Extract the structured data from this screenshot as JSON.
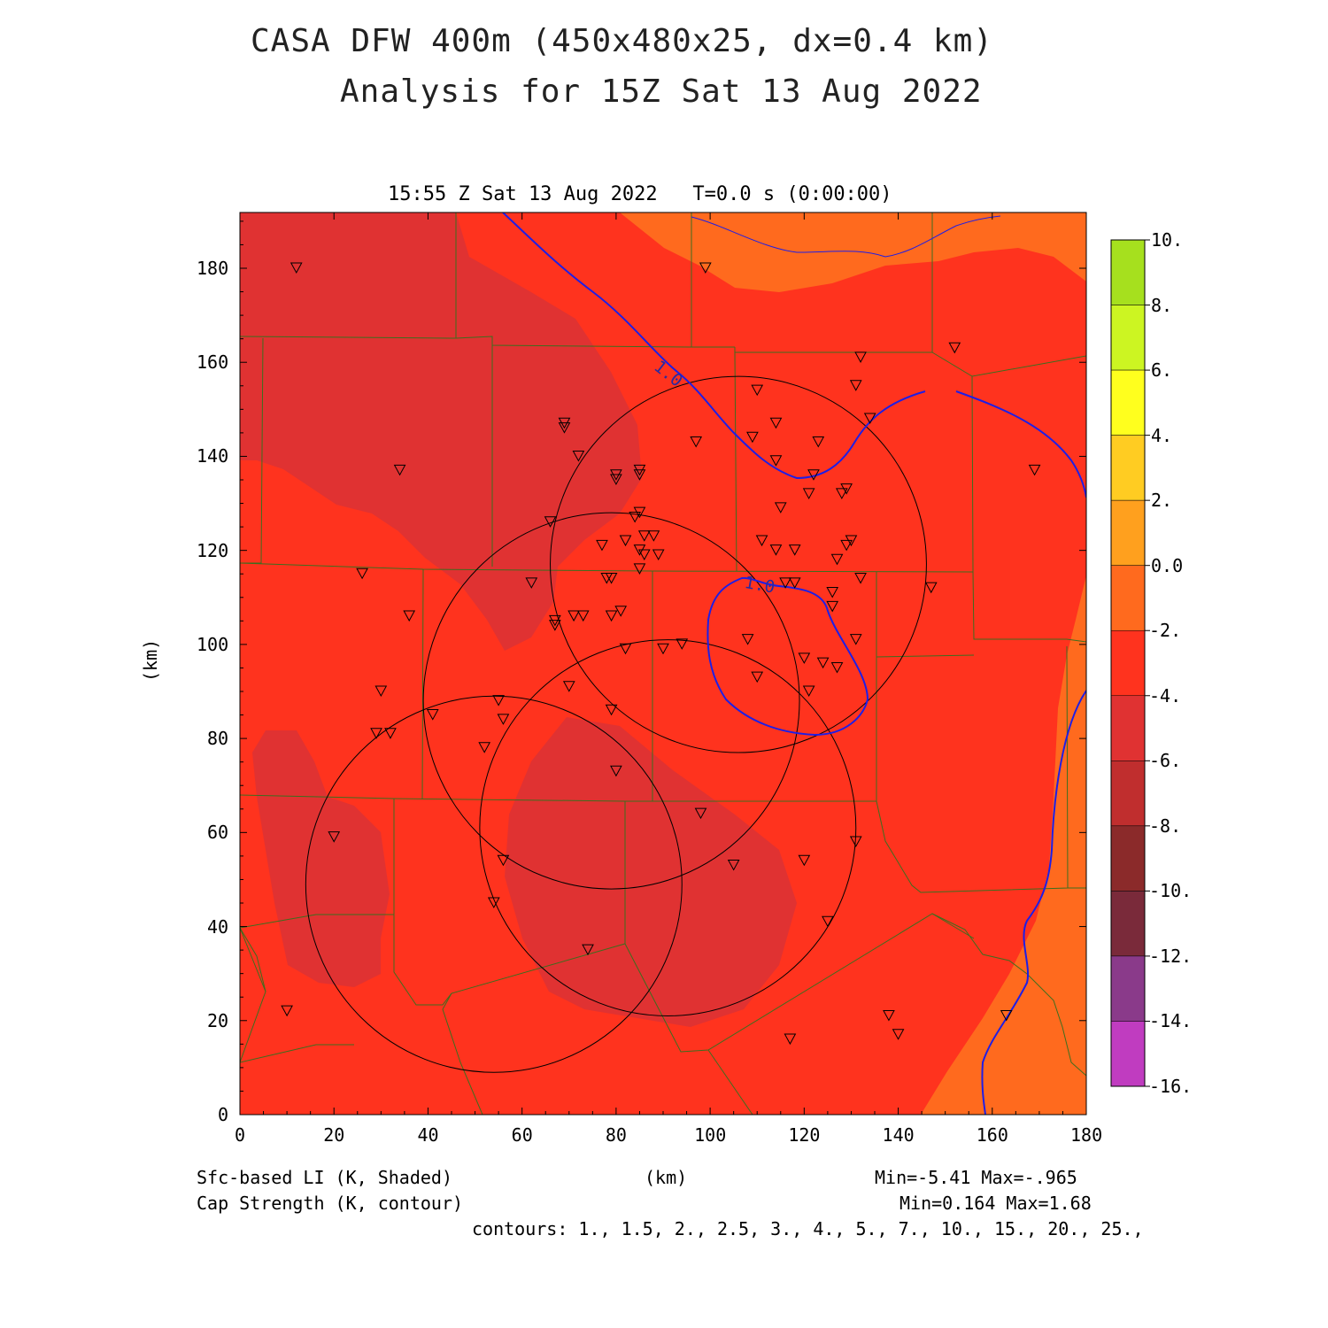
{
  "title": {
    "line1": "CASA DFW 400m (450x480x25, dx=0.4 km)",
    "line2": "Analysis for 15Z Sat 13 Aug 2022"
  },
  "time_label": "15:55 Z Sat 13 Aug 2022   T=0.0 s (0:00:00)",
  "axes": {
    "x_label": "(km)",
    "y_label": "(km)",
    "x_ticks": [
      "0",
      "20",
      "40",
      "60",
      "80",
      "100",
      "120",
      "140",
      "160",
      "180"
    ],
    "y_ticks": [
      "0",
      "20",
      "40",
      "60",
      "80",
      "100",
      "120",
      "140",
      "160",
      "180"
    ]
  },
  "colorbar": {
    "labels": [
      "10.",
      "8.",
      "6.",
      "4.",
      "2.",
      "0.0",
      "-2.",
      "-4.",
      "-6.",
      "-8.",
      "-10.",
      "-12.",
      "-14.",
      "-16."
    ],
    "colors": [
      "#a6e01e",
      "#ccf522",
      "#ffff1e",
      "#ffcc22",
      "#ffa01e",
      "#ff6a1e",
      "#ff331e",
      "#e03232",
      "#c02e2e",
      "#8b2a2a",
      "#7a2a3a",
      "#8a3a8a",
      "#c03cc0",
      "#dd44dd"
    ]
  },
  "footer": {
    "left1": "Sfc-based LI (K, Shaded)",
    "left2": "Cap Strength (K, contour)",
    "center": "(km)",
    "right1": "Min=-5.41 Max=-.965",
    "right2": "Min=0.164 Max=1.68",
    "contours": "contours: 1., 1.5, 2., 2.5, 3., 4., 5., 7., 10., 15., 20., 25.,"
  },
  "contour_labels": [
    "1.0",
    "1.0"
  ],
  "colors": {
    "field_main": "#ff331e",
    "field_low": "#e03232",
    "field_high": "#ff6a1e",
    "contour": "#1e1ee6",
    "county": "#3c6e1e"
  },
  "stations": [
    [
      12,
      180
    ],
    [
      34,
      137
    ],
    [
      26,
      115
    ],
    [
      36,
      106
    ],
    [
      30,
      90
    ],
    [
      29,
      81
    ],
    [
      32,
      81
    ],
    [
      41,
      85
    ],
    [
      20,
      59
    ],
    [
      10,
      22
    ],
    [
      52,
      78
    ],
    [
      55,
      88
    ],
    [
      56,
      84
    ],
    [
      56,
      54
    ],
    [
      54,
      45
    ],
    [
      62,
      113
    ],
    [
      66,
      126
    ],
    [
      67,
      104
    ],
    [
      67,
      105
    ],
    [
      69,
      146
    ],
    [
      69,
      147
    ],
    [
      72,
      140
    ],
    [
      71,
      106
    ],
    [
      73,
      106
    ],
    [
      70,
      91
    ],
    [
      74,
      35
    ],
    [
      77,
      121
    ],
    [
      78,
      114
    ],
    [
      79,
      114
    ],
    [
      80,
      136
    ],
    [
      80,
      135
    ],
    [
      82,
      122
    ],
    [
      85,
      137
    ],
    [
      85,
      136
    ],
    [
      84,
      127
    ],
    [
      85,
      128
    ],
    [
      86,
      123
    ],
    [
      85,
      120
    ],
    [
      86,
      119
    ],
    [
      85,
      116
    ],
    [
      81,
      107
    ],
    [
      79,
      106
    ],
    [
      82,
      99
    ],
    [
      79,
      86
    ],
    [
      80,
      73
    ],
    [
      88,
      123
    ],
    [
      89,
      119
    ],
    [
      90,
      99
    ],
    [
      94,
      100
    ],
    [
      97,
      143
    ],
    [
      98,
      64
    ],
    [
      99,
      180
    ],
    [
      110,
      154
    ],
    [
      109,
      144
    ],
    [
      114,
      139
    ],
    [
      114,
      147
    ],
    [
      115,
      129
    ],
    [
      111,
      122
    ],
    [
      114,
      120
    ],
    [
      118,
      120
    ],
    [
      116,
      113
    ],
    [
      118,
      113
    ],
    [
      121,
      132
    ],
    [
      122,
      136
    ],
    [
      123,
      143
    ],
    [
      120,
      97
    ],
    [
      121,
      90
    ],
    [
      124,
      96
    ],
    [
      127,
      95
    ],
    [
      126,
      111
    ],
    [
      126,
      108
    ],
    [
      127,
      118
    ],
    [
      128,
      132
    ],
    [
      129,
      133
    ],
    [
      130,
      122
    ],
    [
      129,
      121
    ],
    [
      131,
      101
    ],
    [
      132,
      114
    ],
    [
      131,
      155
    ],
    [
      132,
      161
    ],
    [
      134,
      148
    ],
    [
      108,
      101
    ],
    [
      110,
      93
    ],
    [
      105,
      53
    ],
    [
      120,
      54
    ],
    [
      125,
      41
    ],
    [
      131,
      58
    ],
    [
      117,
      16
    ],
    [
      138,
      21
    ],
    [
      140,
      17
    ],
    [
      147,
      112
    ],
    [
      152,
      163
    ],
    [
      169,
      137
    ],
    [
      163,
      21
    ]
  ],
  "radar_rings": [
    [
      106,
      117,
      40
    ],
    [
      79,
      88,
      40
    ],
    [
      91,
      61,
      40
    ],
    [
      54,
      49,
      40
    ]
  ]
}
